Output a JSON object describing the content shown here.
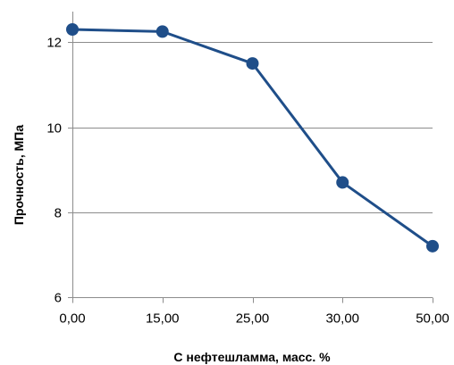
{
  "chart_data": {
    "type": "line",
    "categories": [
      "0,00",
      "15,00",
      "25,00",
      "30,00",
      "50,00"
    ],
    "series": [
      {
        "values": [
          12.3,
          12.25,
          11.5,
          8.7,
          7.2
        ],
        "color": "#1f4e89"
      }
    ],
    "xlabel": "С нефтешламма, масс. %",
    "ylabel": "Прочность, МПа",
    "ylim": [
      6,
      12
    ],
    "yticks": [
      6,
      8,
      10,
      12
    ],
    "grid": true,
    "legend": false
  }
}
